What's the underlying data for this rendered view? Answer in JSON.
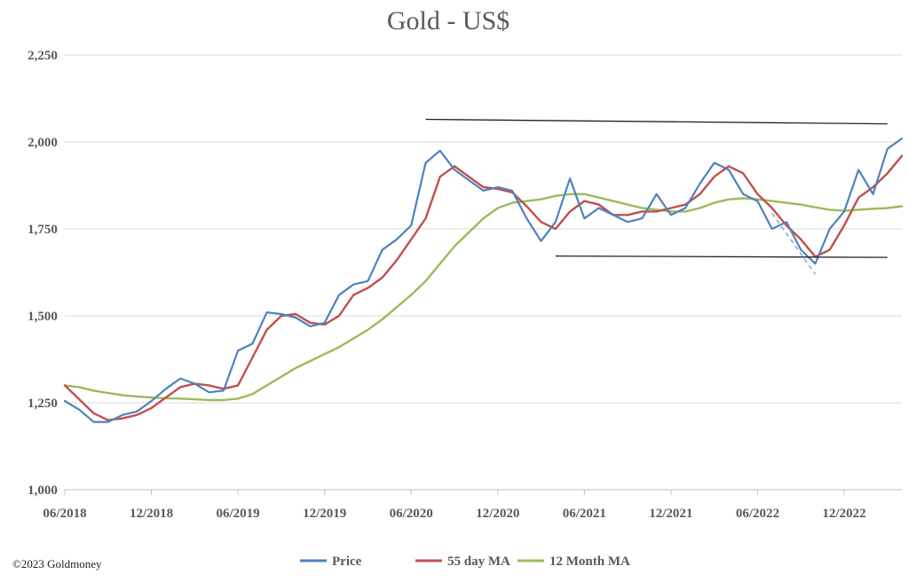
{
  "chart_data": {
    "type": "line",
    "title": "Gold - US$",
    "xlabel": "",
    "ylabel": "",
    "ylim": [
      1000,
      2250
    ],
    "yticks": [
      1000,
      1250,
      1500,
      1750,
      2000,
      2250
    ],
    "ytick_labels": [
      "1,000",
      "1,250",
      "1,500",
      "1,750",
      "2,000",
      "2,250"
    ],
    "xlim": [
      "2018-06",
      "2023-04"
    ],
    "xticks": [
      "2018-06",
      "2018-12",
      "2019-06",
      "2019-12",
      "2020-06",
      "2020-12",
      "2021-06",
      "2021-12",
      "2022-06",
      "2022-12"
    ],
    "xtick_labels": [
      "06/2018",
      "12/2018",
      "06/2019",
      "12/2019",
      "06/2020",
      "12/2020",
      "06/2021",
      "12/2021",
      "06/2022",
      "12/2022"
    ],
    "grid": true,
    "legend_position": "bottom",
    "series": [
      {
        "name": "Price",
        "color": "#4f81bd",
        "x": [
          "2018-06",
          "2018-07",
          "2018-08",
          "2018-09",
          "2018-10",
          "2018-11",
          "2018-12",
          "2019-01",
          "2019-02",
          "2019-03",
          "2019-04",
          "2019-05",
          "2019-06",
          "2019-07",
          "2019-08",
          "2019-09",
          "2019-10",
          "2019-11",
          "2019-12",
          "2020-01",
          "2020-02",
          "2020-03",
          "2020-04",
          "2020-05",
          "2020-06",
          "2020-07",
          "2020-08",
          "2020-09",
          "2020-10",
          "2020-11",
          "2020-12",
          "2021-01",
          "2021-02",
          "2021-03",
          "2021-04",
          "2021-05",
          "2021-06",
          "2021-07",
          "2021-08",
          "2021-09",
          "2021-10",
          "2021-11",
          "2021-12",
          "2022-01",
          "2022-02",
          "2022-03",
          "2022-04",
          "2022-05",
          "2022-06",
          "2022-07",
          "2022-08",
          "2022-09",
          "2022-10",
          "2022-11",
          "2022-12",
          "2023-01",
          "2023-02",
          "2023-03",
          "2023-04"
        ],
        "values": [
          1255,
          1230,
          1195,
          1195,
          1215,
          1225,
          1255,
          1290,
          1320,
          1305,
          1280,
          1285,
          1400,
          1420,
          1510,
          1505,
          1495,
          1470,
          1480,
          1560,
          1590,
          1600,
          1690,
          1720,
          1760,
          1940,
          1975,
          1920,
          1890,
          1860,
          1870,
          1860,
          1780,
          1715,
          1770,
          1895,
          1780,
          1810,
          1790,
          1770,
          1780,
          1850,
          1790,
          1810,
          1880,
          1940,
          1920,
          1850,
          1830,
          1750,
          1770,
          1690,
          1650,
          1750,
          1800,
          1920,
          1850,
          1980,
          2010
        ]
      },
      {
        "name": "55 day MA",
        "color": "#c0504d",
        "x": [
          "2018-06",
          "2018-07",
          "2018-08",
          "2018-09",
          "2018-10",
          "2018-11",
          "2018-12",
          "2019-01",
          "2019-02",
          "2019-03",
          "2019-04",
          "2019-05",
          "2019-06",
          "2019-07",
          "2019-08",
          "2019-09",
          "2019-10",
          "2019-11",
          "2019-12",
          "2020-01",
          "2020-02",
          "2020-03",
          "2020-04",
          "2020-05",
          "2020-06",
          "2020-07",
          "2020-08",
          "2020-09",
          "2020-10",
          "2020-11",
          "2020-12",
          "2021-01",
          "2021-02",
          "2021-03",
          "2021-04",
          "2021-05",
          "2021-06",
          "2021-07",
          "2021-08",
          "2021-09",
          "2021-10",
          "2021-11",
          "2021-12",
          "2022-01",
          "2022-02",
          "2022-03",
          "2022-04",
          "2022-05",
          "2022-06",
          "2022-07",
          "2022-08",
          "2022-09",
          "2022-10",
          "2022-11",
          "2022-12",
          "2023-01",
          "2023-02",
          "2023-03",
          "2023-04"
        ],
        "values": [
          1300,
          1260,
          1220,
          1200,
          1205,
          1215,
          1235,
          1265,
          1295,
          1305,
          1300,
          1290,
          1300,
          1380,
          1460,
          1500,
          1505,
          1480,
          1475,
          1500,
          1560,
          1580,
          1610,
          1660,
          1720,
          1780,
          1900,
          1930,
          1900,
          1870,
          1865,
          1855,
          1815,
          1770,
          1750,
          1800,
          1830,
          1820,
          1790,
          1790,
          1800,
          1800,
          1810,
          1820,
          1850,
          1900,
          1930,
          1910,
          1850,
          1810,
          1760,
          1720,
          1670,
          1690,
          1760,
          1840,
          1870,
          1910,
          1960
        ]
      },
      {
        "name": "12 Month MA",
        "color": "#9bbb59",
        "x": [
          "2018-06",
          "2018-07",
          "2018-08",
          "2018-09",
          "2018-10",
          "2018-11",
          "2018-12",
          "2019-01",
          "2019-02",
          "2019-03",
          "2019-04",
          "2019-05",
          "2019-06",
          "2019-07",
          "2019-08",
          "2019-09",
          "2019-10",
          "2019-11",
          "2019-12",
          "2020-01",
          "2020-02",
          "2020-03",
          "2020-04",
          "2020-05",
          "2020-06",
          "2020-07",
          "2020-08",
          "2020-09",
          "2020-10",
          "2020-11",
          "2020-12",
          "2021-01",
          "2021-02",
          "2021-03",
          "2021-04",
          "2021-05",
          "2021-06",
          "2021-07",
          "2021-08",
          "2021-09",
          "2021-10",
          "2021-11",
          "2021-12",
          "2022-01",
          "2022-02",
          "2022-03",
          "2022-04",
          "2022-05",
          "2022-06",
          "2022-07",
          "2022-08",
          "2022-09",
          "2022-10",
          "2022-11",
          "2022-12",
          "2023-01",
          "2023-02",
          "2023-03",
          "2023-04"
        ],
        "values": [
          1300,
          1295,
          1285,
          1278,
          1272,
          1268,
          1265,
          1263,
          1262,
          1260,
          1258,
          1258,
          1262,
          1275,
          1300,
          1325,
          1350,
          1370,
          1390,
          1410,
          1435,
          1460,
          1490,
          1525,
          1560,
          1600,
          1650,
          1700,
          1740,
          1780,
          1810,
          1825,
          1830,
          1835,
          1845,
          1850,
          1850,
          1840,
          1830,
          1820,
          1810,
          1805,
          1800,
          1800,
          1810,
          1825,
          1835,
          1838,
          1835,
          1830,
          1825,
          1820,
          1812,
          1805,
          1802,
          1805,
          1808,
          1810,
          1815
        ]
      }
    ],
    "annotations": {
      "upper_trendline": {
        "x": [
          "2020-07",
          "2023-03"
        ],
        "y": [
          2065,
          2052
        ]
      },
      "lower_trendline": {
        "x": [
          "2021-04",
          "2023-03"
        ],
        "y": [
          1672,
          1668
        ]
      },
      "dashed_trendline": {
        "x": [
          "2022-07",
          "2022-10"
        ],
        "y": [
          1795,
          1620
        ],
        "style": "dashed"
      }
    }
  },
  "credit": "©2023 Goldmoney"
}
